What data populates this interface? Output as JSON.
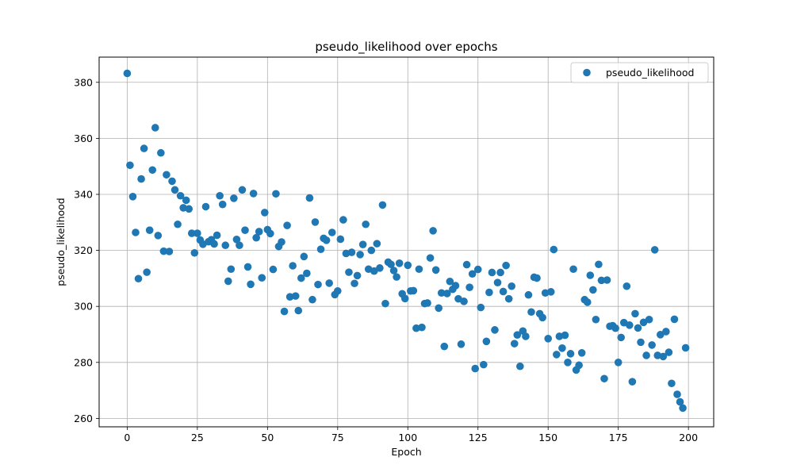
{
  "chart_data": {
    "type": "scatter",
    "title": "pseudo_likelihood over epochs",
    "xlabel": "Epoch",
    "ylabel": "pseudo_likelihood",
    "xlim": [
      -10,
      209
    ],
    "ylim": [
      257,
      389
    ],
    "xticks": [
      0,
      25,
      50,
      75,
      100,
      125,
      150,
      175,
      200
    ],
    "yticks": [
      260,
      280,
      300,
      320,
      340,
      360,
      380
    ],
    "grid": true,
    "legend_position": "top-right",
    "color": "#1f77b4",
    "series": [
      {
        "name": "pseudo_likelihood",
        "x": [
          0,
          1,
          2,
          3,
          4,
          5,
          6,
          7,
          8,
          9,
          10,
          11,
          12,
          13,
          14,
          15,
          16,
          17,
          18,
          19,
          20,
          21,
          22,
          23,
          24,
          25,
          26,
          27,
          28,
          29,
          30,
          31,
          32,
          33,
          34,
          35,
          36,
          37,
          38,
          39,
          40,
          41,
          42,
          43,
          44,
          45,
          46,
          47,
          48,
          49,
          50,
          51,
          52,
          53,
          54,
          55,
          56,
          57,
          58,
          59,
          60,
          61,
          62,
          63,
          64,
          65,
          66,
          67,
          68,
          69,
          70,
          71,
          72,
          73,
          74,
          75,
          76,
          77,
          78,
          79,
          80,
          81,
          82,
          83,
          84,
          85,
          86,
          87,
          88,
          89,
          90,
          91,
          92,
          93,
          94,
          95,
          96,
          97,
          98,
          99,
          100,
          101,
          102,
          103,
          104,
          105,
          106,
          107,
          108,
          109,
          110,
          111,
          112,
          113,
          114,
          115,
          116,
          117,
          118,
          119,
          120,
          121,
          122,
          123,
          124,
          125,
          126,
          127,
          128,
          129,
          130,
          131,
          132,
          133,
          134,
          135,
          136,
          137,
          138,
          139,
          140,
          141,
          142,
          143,
          144,
          145,
          146,
          147,
          148,
          149,
          150,
          151,
          152,
          153,
          154,
          155,
          156,
          157,
          158,
          159,
          160,
          161,
          162,
          163,
          164,
          165,
          166,
          167,
          168,
          169,
          170,
          171,
          172,
          173,
          174,
          175,
          176,
          177,
          178,
          179,
          180,
          181,
          182,
          183,
          184,
          185,
          186,
          187,
          188,
          189,
          190,
          191,
          192,
          193,
          194,
          195,
          196,
          197,
          198,
          199
        ],
        "y": [
          383.2,
          350.4,
          339.2,
          326.4,
          309.9,
          345.5,
          356.4,
          312.2,
          327.2,
          348.7,
          363.8,
          325.3,
          354.8,
          319.7,
          347.0,
          319.6,
          344.7,
          341.6,
          329.3,
          339.5,
          335.2,
          337.9,
          334.8,
          326.1,
          319.1,
          326.1,
          323.7,
          322.2,
          335.6,
          323.1,
          323.8,
          322.3,
          325.4,
          339.5,
          336.4,
          321.8,
          309.0,
          313.3,
          338.6,
          323.9,
          321.8,
          341.6,
          327.2,
          314.1,
          307.9,
          340.3,
          324.5,
          326.7,
          310.2,
          333.5,
          327.4,
          326.0,
          313.2,
          340.2,
          321.4,
          323.0,
          298.2,
          328.9,
          303.4,
          314.5,
          303.7,
          298.5,
          310.1,
          317.8,
          311.8,
          338.7,
          302.4,
          330.1,
          307.8,
          320.4,
          324.3,
          323.6,
          308.3,
          326.4,
          304.2,
          305.5,
          324.0,
          330.9,
          318.9,
          312.2,
          319.3,
          308.2,
          311.0,
          318.5,
          322.1,
          329.3,
          313.3,
          320.0,
          312.6,
          322.4,
          313.7,
          336.2,
          301.0,
          315.8,
          315.0,
          312.8,
          310.5,
          315.4,
          304.5,
          302.8,
          314.7,
          305.5,
          305.6,
          292.2,
          313.3,
          292.5,
          301.0,
          301.2,
          317.3,
          327.0,
          313.0,
          299.4,
          304.8,
          285.7,
          304.6,
          308.9,
          306.1,
          307.4,
          302.7,
          286.5,
          301.8,
          314.9,
          306.8,
          311.6,
          277.8,
          313.2,
          299.6,
          279.2,
          287.5,
          305.0,
          312.1,
          291.6,
          308.5,
          312.1,
          305.3,
          314.6,
          302.7,
          307.2,
          286.7,
          289.8,
          278.6,
          291.2,
          289.3,
          304.1,
          298.0,
          310.4,
          310.1,
          297.4,
          296.0,
          304.8,
          288.5,
          305.2,
          320.3,
          282.8,
          289.3,
          285.1,
          289.7,
          280.0,
          283.1,
          313.3,
          277.3,
          279.0,
          283.4,
          302.4,
          301.5,
          311.1,
          305.9,
          295.3,
          315.0,
          309.3,
          274.2,
          309.4,
          292.9,
          293.1,
          292.2,
          280.0,
          288.9,
          294.2,
          307.2,
          293.3,
          273.1,
          297.4,
          292.3,
          287.2,
          294.3,
          282.5,
          295.3,
          286.2,
          320.2,
          282.5,
          289.9,
          282.1,
          291.0,
          283.6,
          272.5,
          295.4,
          268.6,
          265.9,
          263.7,
          285.2
        ]
      }
    ]
  }
}
